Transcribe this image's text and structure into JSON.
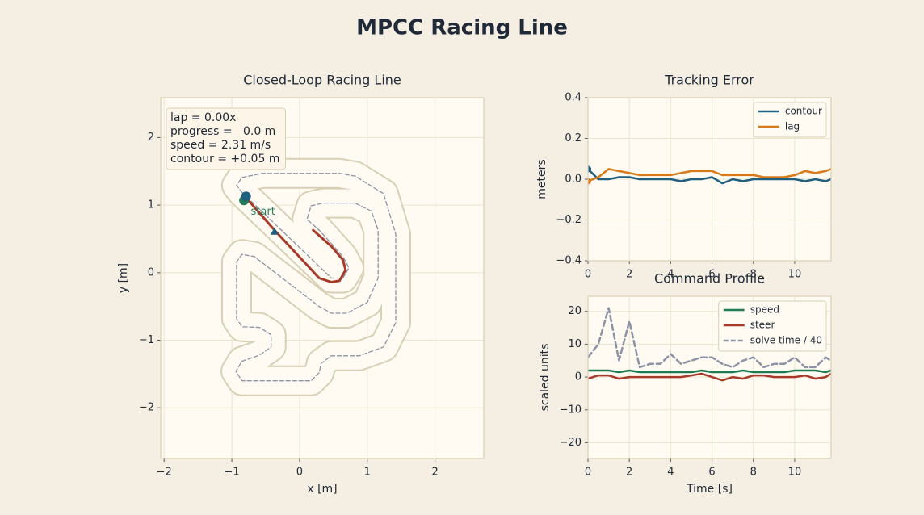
{
  "title": "MPCC Racing Line",
  "chart_data": [
    {
      "type": "xy",
      "title": "Closed-Loop Racing Line",
      "xlabel": "x [m]",
      "ylabel": "y [m]",
      "xlim": [
        -2.05,
        2.72
      ],
      "ylim": [
        -2.75,
        2.59
      ],
      "xticks": [
        {
          "value": -2,
          "label": "−2"
        },
        {
          "value": -1,
          "label": "−1"
        },
        0,
        1,
        2
      ],
      "yticks": [
        {
          "value": -2,
          "label": "−2"
        },
        {
          "value": -1,
          "label": "−1"
        },
        0,
        1,
        2
      ],
      "grid": true,
      "series": [
        {
          "style": "track",
          "closed": true,
          "color": "#8c93a6",
          "edge_color": "#d8cfb5",
          "x": [
            -0.85,
            0.47,
            0.64,
            0.73,
            0.64,
            0.29,
            0.11,
            0.17,
            0.35,
            0.82,
            1.06,
            1.16,
            1.16,
            1.0,
            0.7,
            0.47,
            0.29,
            -0.67,
            -0.85,
            -0.93,
            -0.93,
            -0.85,
            -0.59,
            -0.42,
            -0.42,
            -0.59,
            -0.85,
            -0.94,
            -0.85,
            0.17,
            0.29,
            0.32,
            0.47,
            0.88,
            1.24,
            1.42,
            1.42,
            1.24,
            0.82,
            0.59,
            -0.55,
            -0.85,
            -0.93
          ],
          "values": [
            1.19,
            -0.08,
            -0.08,
            0.07,
            0.24,
            0.63,
            0.79,
            0.99,
            1.03,
            1.03,
            0.91,
            0.63,
            -0.08,
            -0.44,
            -0.6,
            -0.6,
            -0.5,
            0.24,
            0.27,
            0.16,
            -0.68,
            -0.8,
            -0.81,
            -0.92,
            -1.1,
            -1.22,
            -1.31,
            -1.46,
            -1.6,
            -1.6,
            -1.48,
            -1.34,
            -1.23,
            -1.23,
            -1.1,
            -0.74,
            0.57,
            1.17,
            1.43,
            1.47,
            1.47,
            1.41,
            1.29
          ]
        },
        {
          "style": "line",
          "color": "#a83a2a",
          "x": [
            -0.79,
            -0.37,
            0.29,
            0.47,
            0.59,
            0.68,
            0.64,
            0.47,
            0.2
          ],
          "values": [
            1.11,
            0.63,
            -0.08,
            -0.14,
            -0.12,
            0.04,
            0.19,
            0.39,
            0.63
          ]
        }
      ],
      "markers": [
        {
          "shape": "circle",
          "color": "#1f7a55",
          "x": -0.82,
          "y": 1.07
        },
        {
          "shape": "circle",
          "color": "#1f5f7f",
          "x": -0.79,
          "y": 1.13
        },
        {
          "shape": "triangle",
          "color": "#1f5f7f",
          "x": -0.37,
          "y": 0.61
        }
      ],
      "annotations": [
        {
          "text": "start",
          "x": -0.72,
          "y": 0.9,
          "color": "#2a7a5a"
        }
      ],
      "info_box": [
        "lap = 0.00x",
        "progress =   0.0 m",
        "speed = 2.31 m/s",
        "contour = +0.05 m"
      ]
    },
    {
      "type": "line",
      "title": "Tracking Error",
      "ylabel": "meters",
      "x": [
        0,
        0.5,
        1,
        1.5,
        2,
        2.5,
        3,
        3.5,
        4,
        4.5,
        5,
        5.5,
        6,
        6.5,
        7,
        7.5,
        8,
        8.5,
        9,
        9.5,
        10,
        10.5,
        11,
        11.5,
        11.75
      ],
      "xlim": [
        0,
        11.76
      ],
      "ylim": [
        -0.4,
        0.4
      ],
      "xticks": [
        0,
        2,
        4,
        6,
        8,
        10
      ],
      "yticks": [
        {
          "value": -0.4,
          "label": "−0.4"
        },
        {
          "value": -0.2,
          "label": "−0.2"
        },
        {
          "value": 0,
          "label": "0.0"
        },
        0.2,
        0.4
      ],
      "grid": true,
      "legend": "upper right",
      "series": [
        {
          "name": "contour",
          "color": "#1f5f7f",
          "values": [
            0.05,
            0.0,
            0.0,
            0.01,
            0.01,
            0.0,
            0.0,
            0.0,
            0.0,
            -0.01,
            0.0,
            0.0,
            0.01,
            -0.02,
            0.0,
            -0.01,
            0.0,
            0.0,
            0.0,
            0.0,
            0.0,
            -0.01,
            0.0,
            -0.01,
            0.0
          ]
        },
        {
          "name": "lag",
          "color": "#d97a1a",
          "values": [
            -0.01,
            0.01,
            0.05,
            0.04,
            0.03,
            0.02,
            0.02,
            0.02,
            0.02,
            0.03,
            0.04,
            0.04,
            0.04,
            0.02,
            0.02,
            0.02,
            0.02,
            0.01,
            0.01,
            0.01,
            0.02,
            0.04,
            0.03,
            0.04,
            0.05
          ]
        }
      ],
      "markers": [
        {
          "shape": "circle",
          "color": "#1f5f7f",
          "x": 0,
          "y": 0.05
        },
        {
          "shape": "circle",
          "color": "#d97a1a",
          "x": 0,
          "y": -0.01
        }
      ]
    },
    {
      "type": "line",
      "title": "Command Profile",
      "xlabel": "Time [s]",
      "ylabel": "scaled units",
      "x": [
        0,
        0.5,
        1,
        1.5,
        2,
        2.5,
        3,
        3.5,
        4,
        4.5,
        5,
        5.5,
        6,
        6.5,
        7,
        7.5,
        8,
        8.5,
        9,
        9.5,
        10,
        10.5,
        11,
        11.5,
        11.75
      ],
      "xlim": [
        0,
        11.76
      ],
      "ylim": [
        -24.8,
        24.6
      ],
      "xticks": [
        0,
        2,
        4,
        6,
        8,
        10
      ],
      "yticks": [
        {
          "value": -20,
          "label": "−20"
        },
        {
          "value": -10,
          "label": "−10"
        },
        0,
        10,
        20
      ],
      "grid": true,
      "legend": "upper right",
      "series": [
        {
          "name": "speed",
          "color": "#1e7a4f",
          "values": [
            2,
            2,
            2,
            1.5,
            2,
            1.5,
            1.5,
            1.5,
            1.5,
            1.5,
            1.5,
            2,
            1.5,
            1.5,
            1.5,
            2,
            1.5,
            1.5,
            1.5,
            1.5,
            2,
            2,
            2,
            1.5,
            2
          ]
        },
        {
          "name": "steer",
          "color": "#a83a2a",
          "values": [
            -0.5,
            0.5,
            0.5,
            -0.5,
            0,
            0,
            0,
            0,
            0,
            0,
            0.5,
            1,
            0,
            -1,
            0,
            -0.5,
            0.5,
            0.5,
            0,
            0,
            0,
            0.5,
            -0.5,
            0,
            1
          ]
        },
        {
          "name": "solve time / 40",
          "color": "#8c93a6",
          "dashed": true,
          "values": [
            6,
            10,
            21,
            5,
            17,
            3,
            4,
            4,
            7,
            4,
            5,
            6,
            6,
            4,
            3,
            5,
            6,
            3,
            4,
            4,
            6,
            3,
            3,
            6,
            5
          ]
        }
      ]
    }
  ]
}
